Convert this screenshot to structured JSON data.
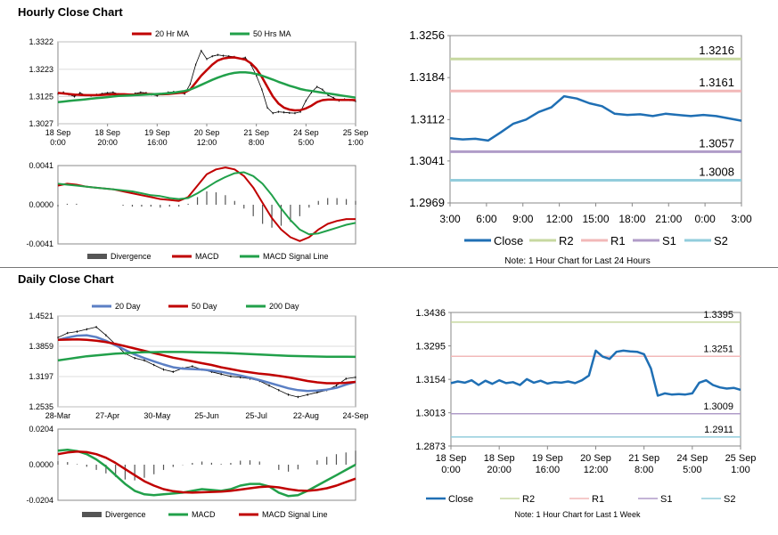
{
  "sections": {
    "hourly_title": "Hourly Close Chart",
    "daily_title": "Daily Close Chart"
  },
  "colors": {
    "ma20": "#c00000",
    "ma50": "#21a04a",
    "ma200": "#21a04a",
    "ma20_daily": "#5b7fc4",
    "ma50_daily": "#c00000",
    "close_blue": "#1f6fb4",
    "r2": "#c7d8a0",
    "r1": "#f2b8b8",
    "s1": "#b09cc8",
    "s2": "#92cddc",
    "price_bars": "#000000",
    "divergence": "#555555"
  },
  "chart_data": [
    {
      "id": "hourly-price",
      "type": "line",
      "title": "",
      "legend": [
        "20 Hr MA",
        "50 Hrs MA"
      ],
      "yticks": [
        "1.3322",
        "1.3223",
        "1.3125",
        "1.3027"
      ],
      "ylim": [
        1.3027,
        1.3322
      ],
      "xticks": [
        [
          "18 Sep",
          "0:00"
        ],
        [
          "18 Sep",
          "20:00"
        ],
        [
          "19 Sep",
          "16:00"
        ],
        [
          "20 Sep",
          "12:00"
        ],
        [
          "21 Sep",
          "8:00"
        ],
        [
          "24 Sep",
          "5:00"
        ],
        [
          "25 Sep",
          "1:00"
        ]
      ],
      "series": [
        {
          "name": "Price",
          "values": [
            1.3135,
            1.314,
            1.3132,
            1.3125,
            1.3138,
            1.313,
            1.3128,
            1.3132,
            1.3135,
            1.3138,
            1.314,
            1.3134,
            1.313,
            1.3129,
            1.3136,
            1.314,
            1.3138,
            1.3132,
            1.3128,
            1.3135,
            1.314,
            1.3142,
            1.3138,
            1.3135,
            1.317,
            1.324,
            1.329,
            1.326,
            1.327,
            1.3275,
            1.3272,
            1.327,
            1.3268,
            1.3262,
            1.3265,
            1.324,
            1.32,
            1.315,
            1.3085,
            1.3065,
            1.307,
            1.3068,
            1.3066,
            1.3065,
            1.307,
            1.311,
            1.314,
            1.316,
            1.315,
            1.313,
            1.312,
            1.311,
            1.3115,
            1.3112,
            1.3108
          ]
        },
        {
          "name": "20 Hr MA",
          "values": [
            1.3138,
            1.3136,
            1.3134,
            1.3132,
            1.3131,
            1.313,
            1.313,
            1.313,
            1.3131,
            1.3132,
            1.3133,
            1.3133,
            1.3133,
            1.3132,
            1.3132,
            1.3133,
            1.3134,
            1.3134,
            1.3133,
            1.3133,
            1.3134,
            1.3136,
            1.3138,
            1.314,
            1.315,
            1.3175,
            1.32,
            1.322,
            1.324,
            1.3255,
            1.3262,
            1.3265,
            1.3266,
            1.3262,
            1.3258,
            1.3245,
            1.3225,
            1.3195,
            1.316,
            1.3125,
            1.31,
            1.3085,
            1.3078,
            1.3075,
            1.3076,
            1.3082,
            1.3092,
            1.3105,
            1.3112,
            1.3114,
            1.3114,
            1.3113,
            1.3113,
            1.3113,
            1.3112
          ]
        },
        {
          "name": "50 Hrs MA",
          "values": [
            1.3105,
            1.3107,
            1.3109,
            1.3111,
            1.3113,
            1.3115,
            1.3117,
            1.3119,
            1.3121,
            1.3123,
            1.3125,
            1.3127,
            1.3128,
            1.3129,
            1.313,
            1.3131,
            1.3132,
            1.3133,
            1.3134,
            1.3135,
            1.3137,
            1.3139,
            1.3142,
            1.3145,
            1.315,
            1.3158,
            1.3167,
            1.3176,
            1.3185,
            1.3193,
            1.32,
            1.3206,
            1.321,
            1.3212,
            1.3212,
            1.321,
            1.3206,
            1.32,
            1.3193,
            1.3186,
            1.3178,
            1.3171,
            1.3164,
            1.3158,
            1.3152,
            1.3148,
            1.3145,
            1.3142,
            1.3139,
            1.3136,
            1.3133,
            1.313,
            1.3127,
            1.3124,
            1.3121
          ]
        }
      ]
    },
    {
      "id": "hourly-macd",
      "type": "line",
      "legend": [
        "Divergence",
        "MACD",
        "MACD Signal Line"
      ],
      "yticks": [
        "0.0041",
        "0.0000",
        "-0.0041"
      ],
      "ylim": [
        -0.0041,
        0.0041
      ],
      "series": [
        {
          "name": "MACD",
          "values": [
            0.002,
            0.0022,
            0.0021,
            0.0019,
            0.0018,
            0.0017,
            0.0016,
            0.0014,
            0.0012,
            0.001,
            0.0008,
            0.0006,
            0.0005,
            0.0004,
            0.0008,
            0.002,
            0.0032,
            0.0037,
            0.0039,
            0.0037,
            0.003,
            0.0018,
            0.0002,
            -0.0014,
            -0.0026,
            -0.0034,
            -0.0038,
            -0.0034,
            -0.0026,
            -0.002,
            -0.0017,
            -0.0015,
            -0.0015
          ]
        },
        {
          "name": "MACD Signal Line",
          "values": [
            0.0022,
            0.0021,
            0.002,
            0.0019,
            0.0018,
            0.0017,
            0.0016,
            0.0015,
            0.0014,
            0.0012,
            0.001,
            0.0009,
            0.0007,
            0.0006,
            0.0007,
            0.0012,
            0.0018,
            0.0024,
            0.0029,
            0.0033,
            0.0034,
            0.003,
            0.0022,
            0.001,
            -0.0004,
            -0.0016,
            -0.0026,
            -0.0031,
            -0.003,
            -0.0027,
            -0.0024,
            -0.0021,
            -0.0019
          ]
        },
        {
          "name": "Divergence",
          "values": [
            -0.0002,
            0.0001,
            0.0001,
            0.0,
            0.0,
            0.0,
            0.0,
            -0.0001,
            -0.0002,
            -0.0002,
            -0.0002,
            -0.0003,
            -0.0002,
            -0.0002,
            0.0001,
            0.0008,
            0.0014,
            0.0013,
            0.001,
            0.0004,
            -0.0004,
            -0.0012,
            -0.002,
            -0.0024,
            -0.0022,
            -0.0018,
            -0.0012,
            -0.0003,
            0.0004,
            0.0007,
            0.0007,
            0.0006,
            0.0004
          ]
        }
      ]
    },
    {
      "id": "hourly-levels",
      "type": "line",
      "yticks": [
        "1.3256",
        "1.3184",
        "1.3112",
        "1.3041",
        "1.2969"
      ],
      "ylim": [
        1.2969,
        1.3256
      ],
      "xticks": [
        "3:00",
        "6:00",
        "9:00",
        "12:00",
        "15:00",
        "18:00",
        "21:00",
        "0:00",
        "3:00"
      ],
      "levels": {
        "R2": "1.3216",
        "R1": "1.3161",
        "S1": "1.3057",
        "S2": "1.3008"
      },
      "level_values": {
        "R2": 1.3216,
        "R1": 1.3161,
        "S1": 1.3057,
        "S2": 1.3008
      },
      "legend": [
        "Close",
        "R2",
        "R1",
        "S1",
        "S2"
      ],
      "note": "Note: 1 Hour Chart for Last 24 Hours",
      "series": [
        {
          "name": "Close",
          "values": [
            1.308,
            1.3078,
            1.3079,
            1.3076,
            1.309,
            1.3105,
            1.3112,
            1.3125,
            1.3133,
            1.3152,
            1.3148,
            1.314,
            1.3135,
            1.3122,
            1.312,
            1.3121,
            1.3118,
            1.3122,
            1.312,
            1.3118,
            1.312,
            1.3118,
            1.3114,
            1.311
          ]
        }
      ]
    },
    {
      "id": "daily-price",
      "type": "line",
      "legend": [
        "20 Day",
        "50 Day",
        "200 Day"
      ],
      "yticks": [
        "1.4521",
        "1.3859",
        "1.3197",
        "1.2535"
      ],
      "ylim": [
        1.2535,
        1.4521
      ],
      "xticks": [
        "28-Mar",
        "27-Apr",
        "30-May",
        "25-Jun",
        "25-Jul",
        "22-Aug",
        "24-Sep"
      ],
      "series": [
        {
          "name": "Price",
          "values": [
            1.405,
            1.415,
            1.418,
            1.423,
            1.428,
            1.41,
            1.39,
            1.37,
            1.36,
            1.355,
            1.345,
            1.335,
            1.33,
            1.338,
            1.342,
            1.335,
            1.33,
            1.325,
            1.32,
            1.318,
            1.315,
            1.31,
            1.3,
            1.29,
            1.28,
            1.275,
            1.28,
            1.285,
            1.29,
            1.3,
            1.315,
            1.318
          ]
        },
        {
          "name": "20 Day",
          "values": [
            1.4,
            1.405,
            1.409,
            1.41,
            1.406,
            1.398,
            1.388,
            1.378,
            1.368,
            1.36,
            1.353,
            1.346,
            1.34,
            1.337,
            1.336,
            1.335,
            1.333,
            1.33,
            1.326,
            1.322,
            1.317,
            1.312,
            1.306,
            1.3,
            1.294,
            1.29,
            1.288,
            1.289,
            1.291,
            1.295,
            1.302,
            1.308
          ]
        },
        {
          "name": "50 Day",
          "values": [
            1.4,
            1.4005,
            1.401,
            1.4,
            1.398,
            1.395,
            1.391,
            1.386,
            1.381,
            1.376,
            1.371,
            1.366,
            1.361,
            1.357,
            1.353,
            1.349,
            1.345,
            1.34,
            1.336,
            1.332,
            1.329,
            1.326,
            1.324,
            1.321,
            1.318,
            1.314,
            1.31,
            1.307,
            1.305,
            1.305,
            1.306,
            1.308
          ]
        },
        {
          "name": "200 Day",
          "values": [
            1.355,
            1.358,
            1.361,
            1.364,
            1.366,
            1.368,
            1.37,
            1.371,
            1.372,
            1.373,
            1.373,
            1.3735,
            1.3735,
            1.3735,
            1.373,
            1.3725,
            1.372,
            1.3715,
            1.371,
            1.37,
            1.369,
            1.368,
            1.367,
            1.366,
            1.365,
            1.3645,
            1.364,
            1.3635,
            1.363,
            1.363,
            1.363,
            1.3628
          ]
        }
      ]
    },
    {
      "id": "daily-macd",
      "type": "line",
      "legend": [
        "Divergence",
        "MACD",
        "MACD Signal Line"
      ],
      "yticks": [
        "0.0204",
        "0.0000",
        "-0.0204"
      ],
      "ylim": [
        -0.0204,
        0.0204
      ],
      "series": [
        {
          "name": "MACD",
          "values": [
            0.008,
            0.0085,
            0.0078,
            0.006,
            0.003,
            -0.001,
            -0.006,
            -0.011,
            -0.015,
            -0.017,
            -0.0175,
            -0.017,
            -0.0165,
            -0.016,
            -0.015,
            -0.014,
            -0.0145,
            -0.015,
            -0.014,
            -0.012,
            -0.011,
            -0.011,
            -0.0125,
            -0.016,
            -0.018,
            -0.0175,
            -0.015,
            -0.012,
            -0.009,
            -0.006,
            -0.003,
            0.0
          ]
        },
        {
          "name": "MACD Signal Line",
          "values": [
            0.006,
            0.007,
            0.0075,
            0.0072,
            0.006,
            0.004,
            0.001,
            -0.0025,
            -0.006,
            -0.0095,
            -0.012,
            -0.014,
            -0.0152,
            -0.0158,
            -0.016,
            -0.0158,
            -0.0156,
            -0.0154,
            -0.015,
            -0.0143,
            -0.0135,
            -0.0128,
            -0.0125,
            -0.013,
            -0.014,
            -0.0148,
            -0.015,
            -0.0145,
            -0.0135,
            -0.012,
            -0.01,
            -0.008
          ]
        },
        {
          "name": "Divergence",
          "values": [
            0.002,
            0.0015,
            0.0003,
            -0.0012,
            -0.003,
            -0.005,
            -0.007,
            -0.0085,
            -0.009,
            -0.0075,
            -0.0055,
            -0.003,
            -0.0013,
            -0.0002,
            0.001,
            0.0018,
            0.0011,
            0.0004,
            0.001,
            0.0023,
            0.0025,
            0.0018,
            0.0,
            -0.003,
            -0.004,
            -0.0027,
            0.0,
            0.0025,
            0.0045,
            0.006,
            0.007,
            0.008
          ]
        }
      ]
    },
    {
      "id": "weekly-levels",
      "type": "line",
      "yticks": [
        "1.3436",
        "1.3295",
        "1.3154",
        "1.3013",
        "1.2873"
      ],
      "ylim": [
        1.2873,
        1.3436
      ],
      "xticks": [
        [
          "18 Sep",
          "0:00"
        ],
        [
          "18 Sep",
          "20:00"
        ],
        [
          "19 Sep",
          "16:00"
        ],
        [
          "20 Sep",
          "12:00"
        ],
        [
          "21 Sep",
          "8:00"
        ],
        [
          "24 Sep",
          "5:00"
        ],
        [
          "25 Sep",
          "1:00"
        ]
      ],
      "levels": {
        "R2": "1.3395",
        "R1": "1.3251",
        "S1": "1.3009",
        "S2": "1.2911"
      },
      "level_values": {
        "R2": 1.3395,
        "R1": 1.3251,
        "S1": 1.3009,
        "S2": 1.2911
      },
      "legend": [
        "Close",
        "R2",
        "R1",
        "S1",
        "S2"
      ],
      "note": "Note: 1 Hour Chart for Last 1 Week",
      "series": [
        {
          "name": "Close",
          "values": [
            1.3138,
            1.3145,
            1.314,
            1.315,
            1.313,
            1.3148,
            1.3135,
            1.315,
            1.3138,
            1.3142,
            1.313,
            1.3155,
            1.314,
            1.3148,
            1.3136,
            1.3142,
            1.314,
            1.3145,
            1.3138,
            1.315,
            1.317,
            1.3275,
            1.325,
            1.324,
            1.327,
            1.3275,
            1.3272,
            1.327,
            1.326,
            1.32,
            1.3085,
            1.3095,
            1.309,
            1.3092,
            1.309,
            1.3095,
            1.314,
            1.315,
            1.313,
            1.312,
            1.3115,
            1.3118,
            1.311
          ]
        }
      ]
    }
  ]
}
